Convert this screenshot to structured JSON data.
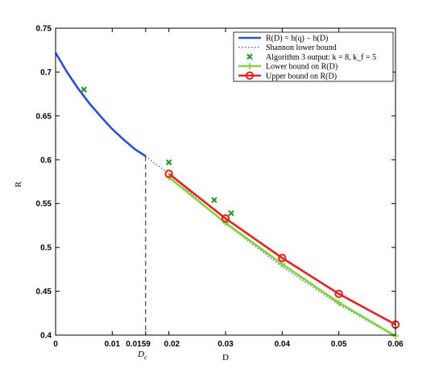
{
  "chart_data": {
    "type": "line",
    "xlabel": "D",
    "ylabel": "R",
    "xlim": [
      0,
      0.06
    ],
    "ylim": [
      0.4,
      0.75
    ],
    "grid": false,
    "legend_position": "top-right",
    "x_ticks": [
      {
        "value": 0,
        "label": "0"
      },
      {
        "value": 0.01,
        "label": "0.01"
      },
      {
        "value": 0.0159,
        "label": "0.0159"
      },
      {
        "value": 0.02,
        "label": "0.02"
      },
      {
        "value": 0.03,
        "label": "0.03"
      },
      {
        "value": 0.04,
        "label": "0.04"
      },
      {
        "value": 0.05,
        "label": "0.05"
      },
      {
        "value": 0.06,
        "label": "0.06"
      }
    ],
    "y_ticks": [
      {
        "value": 0.4,
        "label": "0.4"
      },
      {
        "value": 0.45,
        "label": "0.45"
      },
      {
        "value": 0.5,
        "label": "0.5"
      },
      {
        "value": 0.55,
        "label": "0.55"
      },
      {
        "value": 0.6,
        "label": "0.6"
      },
      {
        "value": 0.65,
        "label": "0.65"
      },
      {
        "value": 0.7,
        "label": "0.7"
      },
      {
        "value": 0.75,
        "label": "0.75"
      }
    ],
    "critical_point": {
      "x": 0.0159,
      "label": "D_c",
      "y_top": 0.604
    },
    "series": [
      {
        "name": "R(D) = h(q) − h(D)",
        "style": "solid",
        "color": "#2a4fd8",
        "x": [
          0,
          0.002,
          0.004,
          0.006,
          0.008,
          0.01,
          0.012,
          0.014,
          0.0159
        ],
        "y": [
          0.722,
          0.7,
          0.681,
          0.664,
          0.649,
          0.635,
          0.623,
          0.612,
          0.604
        ]
      },
      {
        "name": "Shannon lower bound",
        "style": "dotted",
        "color": "#4a60b0",
        "x": [
          0.0159,
          0.02,
          0.03,
          0.04,
          0.05,
          0.06
        ],
        "y": [
          0.604,
          0.584,
          0.527,
          0.478,
          0.435,
          0.398
        ]
      },
      {
        "name": "Algorithm 3 output: k = 8, k_f = 5",
        "style": "markers",
        "marker": "x",
        "color": "#2a9a2a",
        "x": [
          0.005,
          0.02,
          0.028,
          0.031
        ],
        "y": [
          0.68,
          0.597,
          0.554,
          0.539
        ]
      },
      {
        "name": "Lower bound on R(D)",
        "style": "solid",
        "marker": "plus",
        "color": "#7fd63a",
        "x": [
          0.02,
          0.03,
          0.04,
          0.05,
          0.06
        ],
        "y": [
          0.58,
          0.528,
          0.481,
          0.437,
          0.399
        ]
      },
      {
        "name": "Upper bound on R(D)",
        "style": "solid",
        "marker": "circle",
        "color": "#e82020",
        "x": [
          0.02,
          0.03,
          0.04,
          0.05,
          0.06
        ],
        "y": [
          0.584,
          0.533,
          0.488,
          0.447,
          0.412
        ]
      }
    ]
  }
}
